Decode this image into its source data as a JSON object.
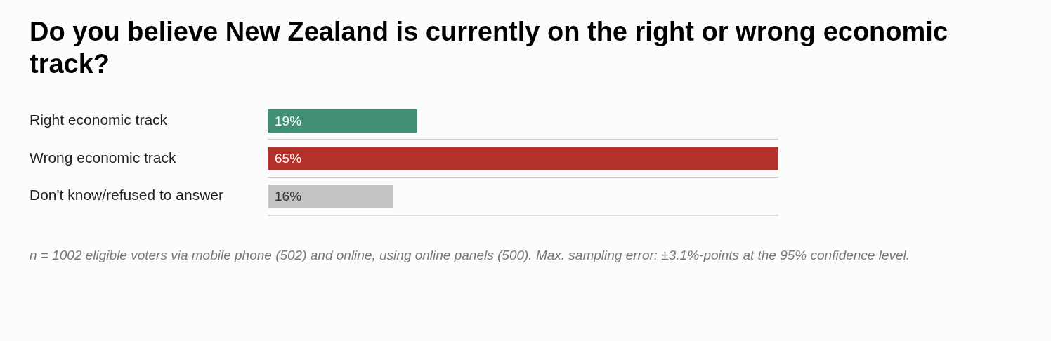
{
  "chart_data": {
    "type": "bar",
    "orientation": "horizontal",
    "title": "Do you believe New Zealand is currently on the right or wrong economic track?",
    "categories": [
      "Right economic track",
      "Wrong economic track",
      "Don't know/refused to answer"
    ],
    "values": [
      19,
      65,
      16
    ],
    "colors": [
      "#418f75",
      "#b4302a",
      "#c4c4c4"
    ],
    "value_labels": [
      "19%",
      "65%",
      "16%"
    ],
    "grid": "y",
    "legend": false,
    "annotations": [
      "n = 1002 eligible voters via mobile phone (502) and online, using online panels (500). Max. sampling error: ±3.1%-points at the 95% confidence level."
    ]
  }
}
